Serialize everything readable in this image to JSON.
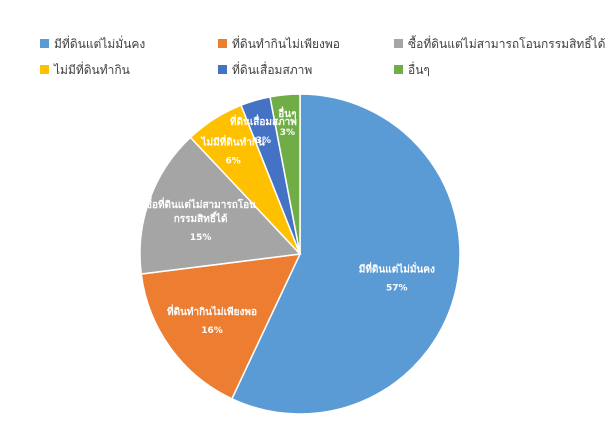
{
  "chart_data": {
    "type": "pie",
    "title": "",
    "categories": [
      "มีที่ดินแต่ไม่มั่นคง",
      "ที่ดินทำกินไม่เพียงพอ",
      "ซื้อที่ดินแต่ไม่สามารถโอนกรรมสิทธิ์ได้",
      "ไม่มีที่ดินทำกิน",
      "ที่ดินเสื่อมสภาพ",
      "อื่นๆ"
    ],
    "values": [
      57,
      16,
      15,
      6,
      3,
      3
    ],
    "data_labels": [
      "57%",
      "16%",
      "15%",
      "6%",
      "3%",
      "3%"
    ],
    "slice_label_lines": [
      [
        "มีที่ดินแต่ไม่มั่นคง"
      ],
      [
        "ที่ดินทำกินไม่เพียงพอ"
      ],
      [
        "ซื้อที่ดินแต่ไม่สามารถโอน",
        "กรรมสิทธิ์ได้"
      ],
      [
        "ไม่มีที่ดินทำกิน"
      ],
      [
        "ที่ดินเสื่อมสภาพ"
      ],
      [
        "อื่นๆ"
      ]
    ],
    "colors": [
      "#5B9BD5",
      "#ED7D31",
      "#A5A5A5",
      "#FFC000",
      "#4472C4",
      "#70AD47"
    ],
    "legend_position": "top"
  }
}
